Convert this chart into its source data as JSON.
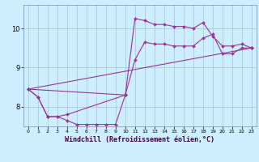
{
  "xlabel": "Windchill (Refroidissement éolien,°C)",
  "bg_color": "#cceeff",
  "grid_color": "#aabbcc",
  "line_color": "#993399",
  "xlim": [
    -0.5,
    23.5
  ],
  "ylim": [
    7.5,
    10.6
  ],
  "xticks": [
    0,
    1,
    2,
    3,
    4,
    5,
    6,
    7,
    8,
    9,
    10,
    11,
    12,
    13,
    14,
    15,
    16,
    17,
    18,
    19,
    20,
    21,
    22,
    23
  ],
  "yticks": [
    8,
    9,
    10
  ],
  "series": [
    {
      "x": [
        0,
        1,
        2,
        3,
        4,
        5,
        6,
        7,
        8,
        9,
        10
      ],
      "y": [
        8.45,
        8.25,
        7.75,
        7.75,
        7.65,
        7.55,
        7.55,
        7.55,
        7.55,
        7.55,
        8.3
      ]
    },
    {
      "x": [
        0,
        1,
        2,
        3,
        4,
        10,
        11,
        12,
        13,
        14,
        15,
        16,
        17,
        18,
        19,
        20,
        21,
        22,
        23
      ],
      "y": [
        8.45,
        8.25,
        7.75,
        7.75,
        7.8,
        8.3,
        9.2,
        9.65,
        9.6,
        9.6,
        9.55,
        9.55,
        9.55,
        9.75,
        9.85,
        9.35,
        9.35,
        9.5,
        9.5
      ]
    },
    {
      "x": [
        0,
        10,
        11,
        12,
        13,
        14,
        15,
        16,
        17,
        18,
        19,
        20,
        21,
        22,
        23
      ],
      "y": [
        8.45,
        8.3,
        10.25,
        10.2,
        10.1,
        10.1,
        10.05,
        10.05,
        10.0,
        10.15,
        9.8,
        9.55,
        9.55,
        9.6,
        9.5
      ]
    },
    {
      "x": [
        0,
        23
      ],
      "y": [
        8.45,
        9.5
      ]
    }
  ]
}
